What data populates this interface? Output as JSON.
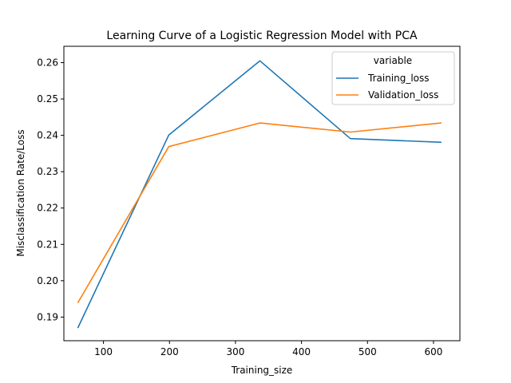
{
  "chart_data": {
    "type": "line",
    "title": "Learning Curve of a Logistic Regression Model with PCA",
    "xlabel": "Training_size",
    "ylabel": "Misclassification Rate/Loss",
    "xlim": [
      40,
      640
    ],
    "ylim": [
      0.1835,
      0.2645
    ],
    "xticks": [
      100,
      200,
      300,
      400,
      500,
      600
    ],
    "yticks": [
      0.19,
      0.2,
      0.21,
      0.22,
      0.23,
      0.24,
      0.25,
      0.26
    ],
    "x": [
      61,
      199,
      337,
      474,
      612
    ],
    "series": [
      {
        "name": "Training_loss",
        "color": "#1f77b4",
        "values": [
          0.187,
          0.2401,
          0.2605,
          0.2391,
          0.2381
        ]
      },
      {
        "name": "Validation_loss",
        "color": "#ff7f0e",
        "values": [
          0.1939,
          0.2369,
          0.2434,
          0.2409,
          0.2434
        ]
      }
    ],
    "legend": {
      "title": "variable",
      "placement": "top-right"
    },
    "grid": false
  }
}
